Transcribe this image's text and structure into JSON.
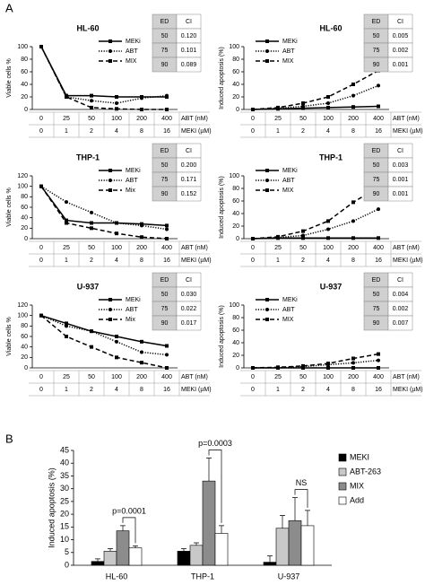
{
  "panels": [
    "A",
    "B"
  ],
  "chart_data": [
    {
      "type": "line",
      "title": "HL-60",
      "ylabel": "Viable cells %",
      "xlabel": "ABT (nM)",
      "xlabel2": "MEKI (µM)",
      "categories": [
        "0",
        "25",
        "50",
        "100",
        "200",
        "400"
      ],
      "categories2": [
        "0",
        "1",
        "2",
        "4",
        "8",
        "16"
      ],
      "ylim": [
        0,
        100
      ],
      "yticks": [
        0,
        20,
        40,
        60,
        80,
        100
      ],
      "series": [
        {
          "name": "MEKi",
          "color": "#000000",
          "dash": "solid",
          "marker": "square",
          "values": [
            100,
            22,
            22,
            20,
            20,
            20
          ]
        },
        {
          "name": "ABT",
          "color": "#000000",
          "dash": "dotted",
          "marker": "circle",
          "values": [
            100,
            20,
            14,
            10,
            18,
            22
          ]
        },
        {
          "name": "MIX",
          "color": "#000000",
          "dash": "dashed",
          "marker": "square",
          "values": [
            100,
            20,
            3,
            1,
            0,
            0
          ]
        }
      ],
      "table": {
        "header": [
          "ED",
          "CI"
        ],
        "rows": [
          [
            50,
            "0.120"
          ],
          [
            75,
            "0.101"
          ],
          [
            90,
            "0.089"
          ]
        ]
      }
    },
    {
      "type": "line",
      "title": "HL-60",
      "ylabel": "Induced apoptosis (%)",
      "xlabel": "ABT (nM)",
      "xlabel2": "MEKI (µM)",
      "categories": [
        "0",
        "25",
        "50",
        "100",
        "200",
        "400"
      ],
      "categories2": [
        "0",
        "1",
        "2",
        "4",
        "8",
        "16"
      ],
      "ylim": [
        0,
        100
      ],
      "yticks": [
        0,
        20,
        40,
        60,
        80,
        100
      ],
      "series": [
        {
          "name": "MEKi",
          "color": "#000000",
          "dash": "solid",
          "marker": "square",
          "values": [
            0,
            1,
            2,
            3,
            4,
            5
          ]
        },
        {
          "name": "ABT",
          "color": "#000000",
          "dash": "dotted",
          "marker": "circle",
          "values": [
            0,
            2,
            5,
            10,
            22,
            38
          ]
        },
        {
          "name": "MIX",
          "color": "#000000",
          "dash": "dashed",
          "marker": "square",
          "values": [
            0,
            3,
            10,
            20,
            40,
            62
          ]
        }
      ],
      "table": {
        "header": [
          "ED",
          "CI"
        ],
        "rows": [
          [
            50,
            "0.005"
          ],
          [
            75,
            "0.002"
          ],
          [
            90,
            "0.001"
          ]
        ]
      }
    },
    {
      "type": "line",
      "title": "THP-1",
      "ylabel": "Viable cells %",
      "xlabel": "ABT (nM)",
      "xlabel2": "MEKI (µM)",
      "categories": [
        "0",
        "25",
        "50",
        "100",
        "200",
        "400"
      ],
      "categories2": [
        "0",
        "1",
        "2",
        "4",
        "8",
        "16"
      ],
      "ylim": [
        0,
        120
      ],
      "yticks": [
        0,
        20,
        40,
        60,
        80,
        100,
        120
      ],
      "series": [
        {
          "name": "MEKi",
          "color": "#000000",
          "dash": "solid",
          "marker": "square",
          "values": [
            100,
            35,
            30,
            30,
            28,
            25
          ]
        },
        {
          "name": "ABT",
          "color": "#000000",
          "dash": "dotted",
          "marker": "circle",
          "values": [
            100,
            70,
            50,
            30,
            25,
            18
          ]
        },
        {
          "name": "Mix",
          "color": "#000000",
          "dash": "dashed",
          "marker": "square",
          "values": [
            100,
            30,
            20,
            10,
            3,
            0
          ]
        }
      ],
      "table": {
        "header": [
          "ED",
          "CI"
        ],
        "rows": [
          [
            50,
            "0.200"
          ],
          [
            75,
            "0.171"
          ],
          [
            90,
            "0.152"
          ]
        ]
      }
    },
    {
      "type": "line",
      "title": "THP-1",
      "ylabel": "Induced apoptosis (%)",
      "xlabel": "ABT (nM)",
      "xlabel2": "MEKI (µM)",
      "categories": [
        "0",
        "25",
        "50",
        "100",
        "200",
        "400"
      ],
      "categories2": [
        "0",
        "1",
        "2",
        "4",
        "8",
        "16"
      ],
      "ylim": [
        0,
        100
      ],
      "yticks": [
        0,
        20,
        40,
        60,
        80,
        100
      ],
      "series": [
        {
          "name": "MEKi",
          "color": "#000000",
          "dash": "solid",
          "marker": "square",
          "values": [
            0,
            1,
            1,
            1,
            1,
            1
          ]
        },
        {
          "name": "ABT",
          "color": "#000000",
          "dash": "dotted",
          "marker": "circle",
          "values": [
            0,
            2,
            5,
            15,
            28,
            47
          ]
        },
        {
          "name": "MIX",
          "color": "#000000",
          "dash": "dashed",
          "marker": "square",
          "values": [
            0,
            3,
            12,
            28,
            58,
            82
          ]
        }
      ],
      "table": {
        "header": [
          "ED",
          "CI"
        ],
        "rows": [
          [
            50,
            "0.003"
          ],
          [
            75,
            "0.001"
          ],
          [
            90,
            "0.001"
          ]
        ]
      }
    },
    {
      "type": "line",
      "title": "U-937",
      "ylabel": "Viable cells %",
      "xlabel": "ABT (nM)",
      "xlabel2": "MEKI (µM)",
      "categories": [
        "0",
        "25",
        "50",
        "100",
        "200",
        "400"
      ],
      "categories2": [
        "0",
        "1",
        "2",
        "4",
        "8",
        "16"
      ],
      "ylim": [
        0,
        120
      ],
      "yticks": [
        0,
        20,
        40,
        60,
        80,
        100,
        120
      ],
      "series": [
        {
          "name": "MEKi",
          "color": "#000000",
          "dash": "solid",
          "marker": "square",
          "values": [
            100,
            85,
            70,
            60,
            50,
            42
          ]
        },
        {
          "name": "ABT",
          "color": "#000000",
          "dash": "dotted",
          "marker": "circle",
          "values": [
            100,
            80,
            70,
            50,
            30,
            25
          ]
        },
        {
          "name": "Mix",
          "color": "#000000",
          "dash": "dashed",
          "marker": "square",
          "values": [
            100,
            60,
            40,
            20,
            10,
            0
          ]
        }
      ],
      "table": {
        "header": [
          "ED",
          "CI"
        ],
        "rows": [
          [
            50,
            "0.030"
          ],
          [
            75,
            "0.022"
          ],
          [
            90,
            "0.017"
          ]
        ]
      }
    },
    {
      "type": "line",
      "title": "U-937",
      "ylabel": "Induced apoptosis (%)",
      "xlabel": "ABT (nM)",
      "xlabel2": "MEKI (µM)",
      "categories": [
        "0",
        "25",
        "50",
        "100",
        "200",
        "400"
      ],
      "categories2": [
        "0",
        "1",
        "2",
        "4",
        "8",
        "16"
      ],
      "ylim": [
        0,
        100
      ],
      "yticks": [
        0,
        20,
        40,
        60,
        80,
        100
      ],
      "series": [
        {
          "name": "MEKi",
          "color": "#000000",
          "dash": "solid",
          "marker": "square",
          "values": [
            0,
            0,
            0,
            0,
            0,
            0
          ]
        },
        {
          "name": "ABT",
          "color": "#000000",
          "dash": "dotted",
          "marker": "circle",
          "values": [
            0,
            0,
            2,
            5,
            8,
            12
          ]
        },
        {
          "name": "MIX",
          "color": "#000000",
          "dash": "dashed",
          "marker": "square",
          "values": [
            0,
            1,
            3,
            7,
            15,
            22
          ]
        }
      ],
      "table": {
        "header": [
          "ED",
          "CI"
        ],
        "rows": [
          [
            50,
            "0.004"
          ],
          [
            75,
            "0.002"
          ],
          [
            90,
            "0.007"
          ]
        ]
      }
    },
    {
      "type": "bar",
      "ylabel": "Induced apoptosis (%)",
      "categories": [
        "HL-60",
        "THP-1",
        "U-937"
      ],
      "ylim": [
        0,
        45
      ],
      "yticks": [
        0,
        5,
        10,
        15,
        20,
        25,
        30,
        35,
        40,
        45
      ],
      "series": [
        {
          "name": "MEKI",
          "color": "#000000",
          "values": [
            1.5,
            5.5,
            1.2
          ],
          "errors": [
            1,
            1,
            2.5
          ]
        },
        {
          "name": "ABT-263",
          "color": "#c8c8c8",
          "values": [
            5.5,
            7.8,
            14.5
          ],
          "errors": [
            1,
            1,
            5
          ]
        },
        {
          "name": "MIX",
          "color": "#8c8c8c",
          "values": [
            13.5,
            33,
            17.5
          ],
          "errors": [
            2,
            9,
            9
          ]
        },
        {
          "name": "Add",
          "color": "#ffffff",
          "values": [
            6.8,
            12.5,
            15.5
          ],
          "errors": [
            0.8,
            3,
            6
          ]
        }
      ],
      "annotations": [
        "p=0.0001",
        "p=0.0003",
        "NS"
      ]
    }
  ]
}
